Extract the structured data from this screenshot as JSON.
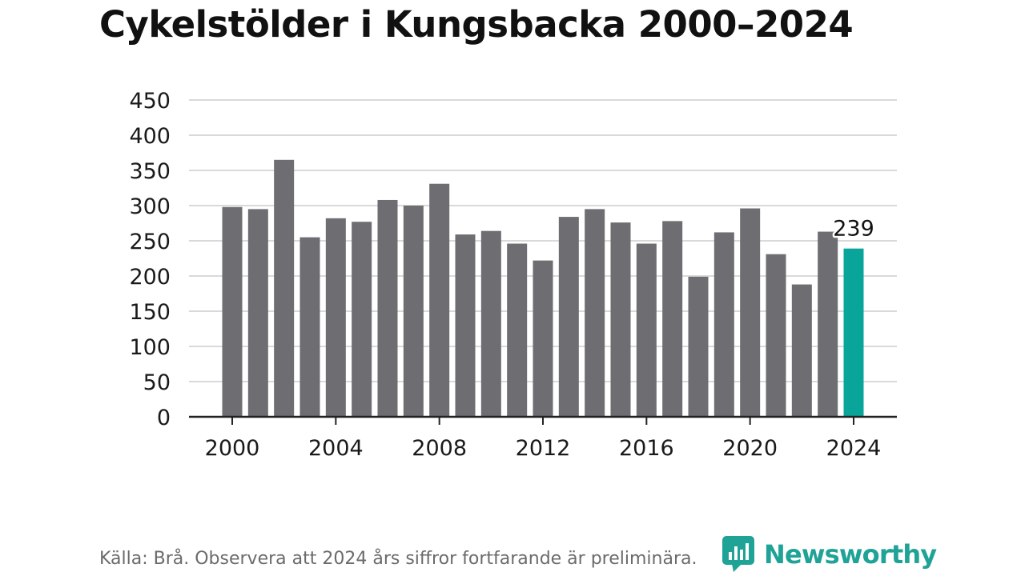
{
  "title": "Cykelstölder i Kungsbacka 2000–2024",
  "footer": {
    "source": "Källa: Brå. Observera att 2024 års siffror fortfarande är preliminära."
  },
  "brand": {
    "name": "Newsworthy",
    "icon": "newsworthy-logo-icon"
  },
  "colors": {
    "bar": "#6e6d72",
    "highlight": "#0aa59a",
    "grid": "#d9d9d9",
    "axis": "#222222",
    "brand": "#1fa396"
  },
  "chart_data": {
    "type": "bar",
    "title": "Cykelstölder i Kungsbacka 2000–2024",
    "xlabel": "",
    "ylabel": "",
    "categories": [
      2000,
      2001,
      2002,
      2003,
      2004,
      2005,
      2006,
      2007,
      2008,
      2009,
      2010,
      2011,
      2012,
      2013,
      2014,
      2015,
      2016,
      2017,
      2018,
      2019,
      2020,
      2021,
      2022,
      2023,
      2024
    ],
    "values": [
      298,
      295,
      365,
      255,
      282,
      277,
      308,
      300,
      331,
      259,
      264,
      246,
      222,
      284,
      295,
      276,
      246,
      278,
      199,
      262,
      296,
      231,
      188,
      263,
      239
    ],
    "ylim": [
      0,
      450
    ],
    "yticks": [
      0,
      50,
      100,
      150,
      200,
      250,
      300,
      350,
      400,
      450
    ],
    "xticks": [
      2000,
      2004,
      2008,
      2012,
      2016,
      2020,
      2024
    ],
    "highlight": {
      "category": 2024,
      "label": "239"
    },
    "grid": true
  }
}
